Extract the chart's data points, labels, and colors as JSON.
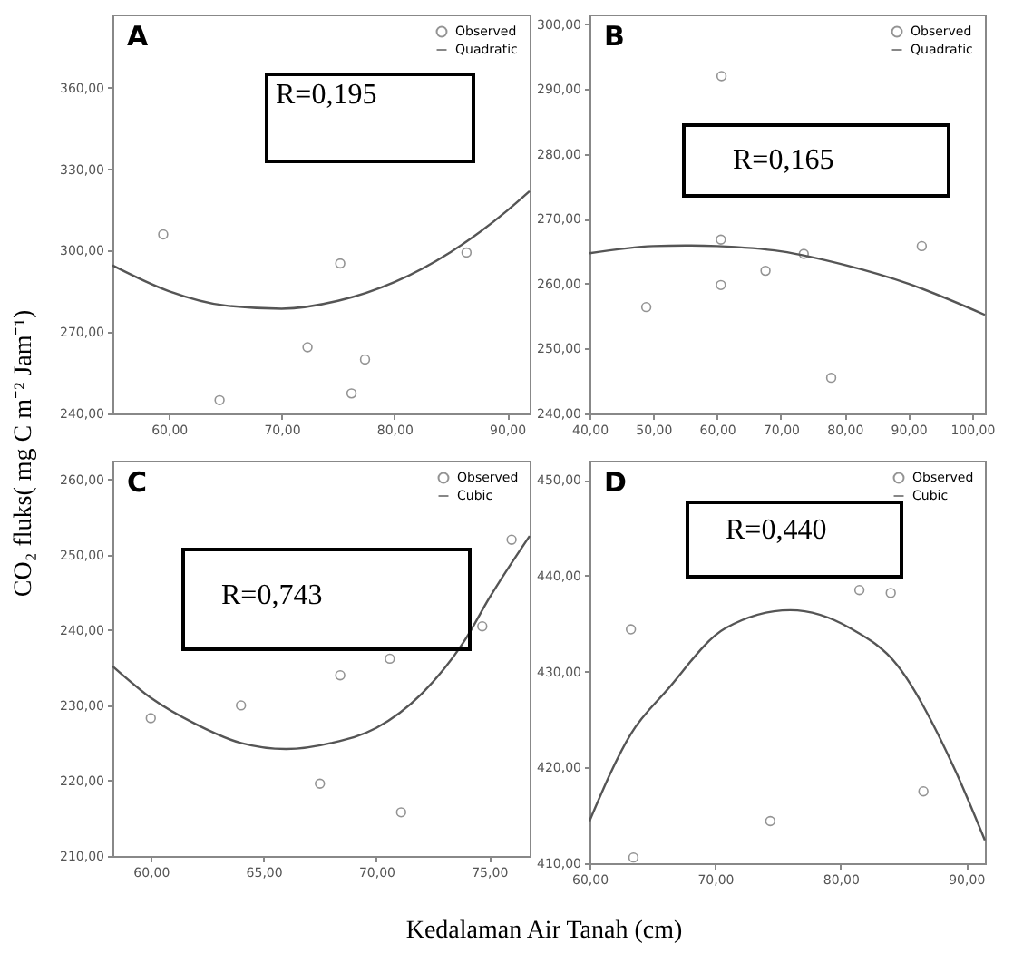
{
  "chart_data": [
    {
      "type": "scatter",
      "title": "A",
      "ylabel": "CO₂ fluks( mg C m⁻² Jam⁻¹)",
      "xlabel": "Kedalaman Air Tanah (cm)",
      "annotations": [
        "R=0,195"
      ],
      "legend": "top right",
      "xlim": [
        55,
        92
      ],
      "xticks": [
        {
          "value": 60,
          "label": "60,00"
        },
        {
          "value": 70,
          "label": "70,00"
        },
        {
          "value": 80,
          "label": "80,00"
        },
        {
          "value": 90,
          "label": "90,00"
        }
      ],
      "ylim": [
        240,
        387
      ],
      "yticks": [
        {
          "value": 240,
          "label": "240,00"
        },
        {
          "value": 270,
          "label": "270,00"
        },
        {
          "value": 300,
          "label": "300,00"
        },
        {
          "value": 330,
          "label": "330,00"
        },
        {
          "value": 360,
          "label": "360,00"
        }
      ],
      "series": [
        {
          "name": "Observed",
          "marker": "circle",
          "color": "#666666",
          "x": [
            59.5,
            64.5,
            72.3,
            75.2,
            76.2,
            77.4,
            86.4
          ],
          "values": [
            306.0,
            244.9,
            264.4,
            295.3,
            247.4,
            259.9,
            299.3
          ]
        },
        {
          "name": "Quadratic",
          "type": "line",
          "color": "#555555",
          "x": [
            55,
            60,
            65,
            70,
            75,
            80,
            85,
            90,
            92
          ],
          "values": [
            294.6,
            285.1,
            279.8,
            278.6,
            281.5,
            288.4,
            299.5,
            314.7,
            321.9
          ]
        }
      ]
    },
    {
      "type": "scatter",
      "title": "B",
      "annotations": [
        "R=0,165"
      ],
      "legend": "top right",
      "xlim": [
        40,
        102
      ],
      "xticks": [
        {
          "value": 40,
          "label": "40,00"
        },
        {
          "value": 50,
          "label": "50,00"
        },
        {
          "value": 60,
          "label": "60,00"
        },
        {
          "value": 70,
          "label": "70,00"
        },
        {
          "value": 80,
          "label": "80,00"
        },
        {
          "value": 90,
          "label": "90,00"
        },
        {
          "value": 100,
          "label": "100,00"
        }
      ],
      "ylim": [
        240,
        301.5
      ],
      "yticks": [
        {
          "value": 240,
          "label": "240,00"
        },
        {
          "value": 250,
          "label": "250,00"
        },
        {
          "value": 260,
          "label": "260,00"
        },
        {
          "value": 270,
          "label": "270,00"
        },
        {
          "value": 280,
          "label": "280,00"
        },
        {
          "value": 290,
          "label": "290,00"
        },
        {
          "value": 300,
          "label": "300,00"
        }
      ],
      "series": [
        {
          "name": "Observed",
          "marker": "circle",
          "color": "#666666",
          "x": [
            48.9,
            60.7,
            60.6,
            60.6,
            67.6,
            73.6,
            77.9,
            92.1
          ],
          "values": [
            256.4,
            292.0,
            266.8,
            259.8,
            262.0,
            264.6,
            245.5,
            265.8
          ]
        },
        {
          "name": "Quadratic",
          "type": "line",
          "color": "#555555",
          "x": [
            40,
            50,
            55,
            60,
            70,
            80,
            90,
            102
          ],
          "values": [
            264.7,
            265.8,
            265.9,
            265.8,
            265.0,
            262.9,
            260.0,
            255.2
          ]
        }
      ]
    },
    {
      "type": "scatter",
      "title": "C",
      "annotations": [
        "R=0,743"
      ],
      "legend": "top right",
      "xlim": [
        58.3,
        76.8
      ],
      "xticks": [
        {
          "value": 60,
          "label": "60,00"
        },
        {
          "value": 65,
          "label": "65,00"
        },
        {
          "value": 70,
          "label": "70,00"
        },
        {
          "value": 75,
          "label": "75,00"
        }
      ],
      "ylim": [
        210,
        262.5
      ],
      "yticks": [
        {
          "value": 210,
          "label": "210,00"
        },
        {
          "value": 220,
          "label": "220,00"
        },
        {
          "value": 230,
          "label": "230,00"
        },
        {
          "value": 240,
          "label": "240,00"
        },
        {
          "value": 250,
          "label": "250,00"
        },
        {
          "value": 260,
          "label": "260,00"
        }
      ],
      "series": [
        {
          "name": "Observed",
          "marker": "circle",
          "color": "#666666",
          "x": [
            60.0,
            64.0,
            67.5,
            68.4,
            70.6,
            71.1,
            74.7,
            76.0
          ],
          "values": [
            228.3,
            230.0,
            219.6,
            234.0,
            236.2,
            215.8,
            240.5,
            252.0
          ]
        },
        {
          "name": "Cubic",
          "type": "line",
          "color": "#555555",
          "x": [
            58.3,
            60,
            62,
            64,
            66,
            68,
            70,
            72,
            74,
            75,
            76.8
          ],
          "values": [
            235.2,
            231.0,
            227.5,
            225.0,
            224.2,
            225.0,
            227.0,
            231.5,
            239.0,
            244.2,
            252.5
          ]
        }
      ]
    },
    {
      "type": "scatter",
      "title": "D",
      "annotations": [
        "R=0,440"
      ],
      "legend": "top right",
      "xlim": [
        60,
        91.5
      ],
      "xticks": [
        {
          "value": 60,
          "label": "60,00"
        },
        {
          "value": 70,
          "label": "70,00"
        },
        {
          "value": 80,
          "label": "80,00"
        },
        {
          "value": 90,
          "label": "90,00"
        }
      ],
      "ylim": [
        410,
        452
      ],
      "yticks": [
        {
          "value": 410,
          "label": "410,00"
        },
        {
          "value": 420,
          "label": "420,00"
        },
        {
          "value": 430,
          "label": "430,00"
        },
        {
          "value": 440,
          "label": "440,00"
        },
        {
          "value": 450,
          "label": "450,00"
        }
      ],
      "series": [
        {
          "name": "Observed",
          "marker": "circle",
          "color": "#666666",
          "x": [
            63.3,
            63.5,
            74.4,
            81.5,
            84.0,
            86.6
          ],
          "values": [
            434.4,
            410.6,
            414.4,
            438.5,
            438.2,
            417.5
          ]
        },
        {
          "name": "Cubic",
          "type": "line",
          "color": "#555555",
          "x": [
            60,
            63.3,
            66.2,
            70.8,
            76,
            80.8,
            84.5,
            89.1,
            91.5
          ],
          "values": [
            414.4,
            423.5,
            428.1,
            434.5,
            436.4,
            434.5,
            430.7,
            419.8,
            412.4
          ]
        }
      ]
    }
  ]
}
